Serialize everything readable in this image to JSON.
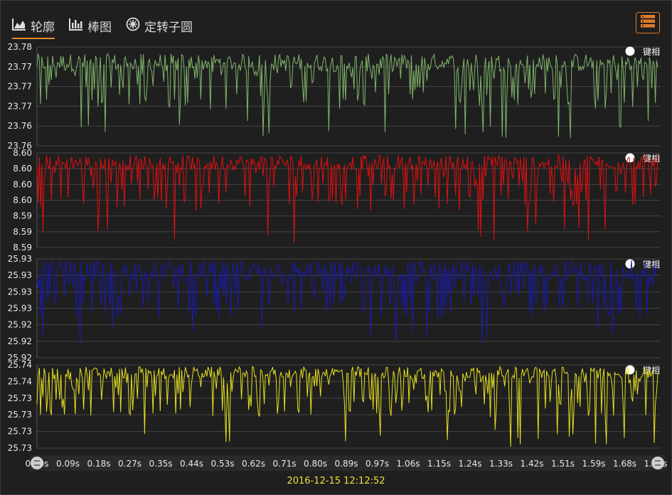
{
  "tabs": [
    {
      "label": "轮廓",
      "icon": "area-chart-icon",
      "active": true
    },
    {
      "label": "棒图",
      "icon": "bar-chart-icon",
      "active": false
    },
    {
      "label": "定转子圆",
      "icon": "rotor-circle-icon",
      "active": false
    }
  ],
  "menu_button": {
    "icon": "menu-list-icon",
    "color": "#e07a2a"
  },
  "timestamp": "2016-12-15 12:12:52",
  "chart_data": [
    {
      "type": "line",
      "legend": "键相",
      "color": "#7fb56a",
      "legend_placement": "top-right",
      "ytick_labels": [
        "23.78",
        "23.77",
        "23.77",
        "23.77",
        "23.76",
        "23.76"
      ],
      "ylim": [
        23.757,
        23.779
      ],
      "baseline": 23.7755,
      "spike_min": 23.7585,
      "max_value": 23.7775
    },
    {
      "type": "line",
      "legend": "键相",
      "color": "#e01010",
      "legend_placement": "top-right",
      "ytick_labels": [
        "8.60",
        "8.60",
        "8.60",
        "8.60",
        "8.59",
        "8.59",
        "8.59"
      ],
      "ylim": [
        8.588,
        8.603
      ],
      "baseline": 8.6015,
      "spike_min": 8.5887,
      "max_value": 8.6027
    },
    {
      "type": "line",
      "legend": "键相",
      "color": "#1a1ab0",
      "legend_placement": "top-right",
      "ytick_labels": [
        "25.93",
        "25.93",
        "25.93",
        "25.93",
        "25.92",
        "25.92",
        "25.92"
      ],
      "ylim": [
        25.918,
        25.931
      ],
      "baseline": 25.9295,
      "spike_min": 25.9193,
      "max_value": 25.9308
    },
    {
      "type": "line",
      "legend": "键相",
      "color": "#e6e020",
      "legend_placement": "top-right",
      "ytick_labels": [
        "25.74",
        "25.74",
        "25.73",
        "25.73",
        "25.73",
        "25.73"
      ],
      "ylim": [
        25.7268,
        25.7408
      ],
      "baseline": 25.7395,
      "spike_min": 25.7269,
      "max_value": 25.7405
    }
  ],
  "x_axis": {
    "tick_labels": [
      "0.00s",
      "0.09s",
      "0.18s",
      "0.27s",
      "0.35s",
      "0.44s",
      "0.53s",
      "0.62s",
      "0.71s",
      "0.80s",
      "0.89s",
      "0.97s",
      "1.06s",
      "1.15s",
      "1.24s",
      "1.33s",
      "1.42s",
      "1.51s",
      "1.59s",
      "1.68s",
      "1.77s"
    ],
    "xlim": [
      0,
      1.77
    ],
    "unit": "s"
  }
}
